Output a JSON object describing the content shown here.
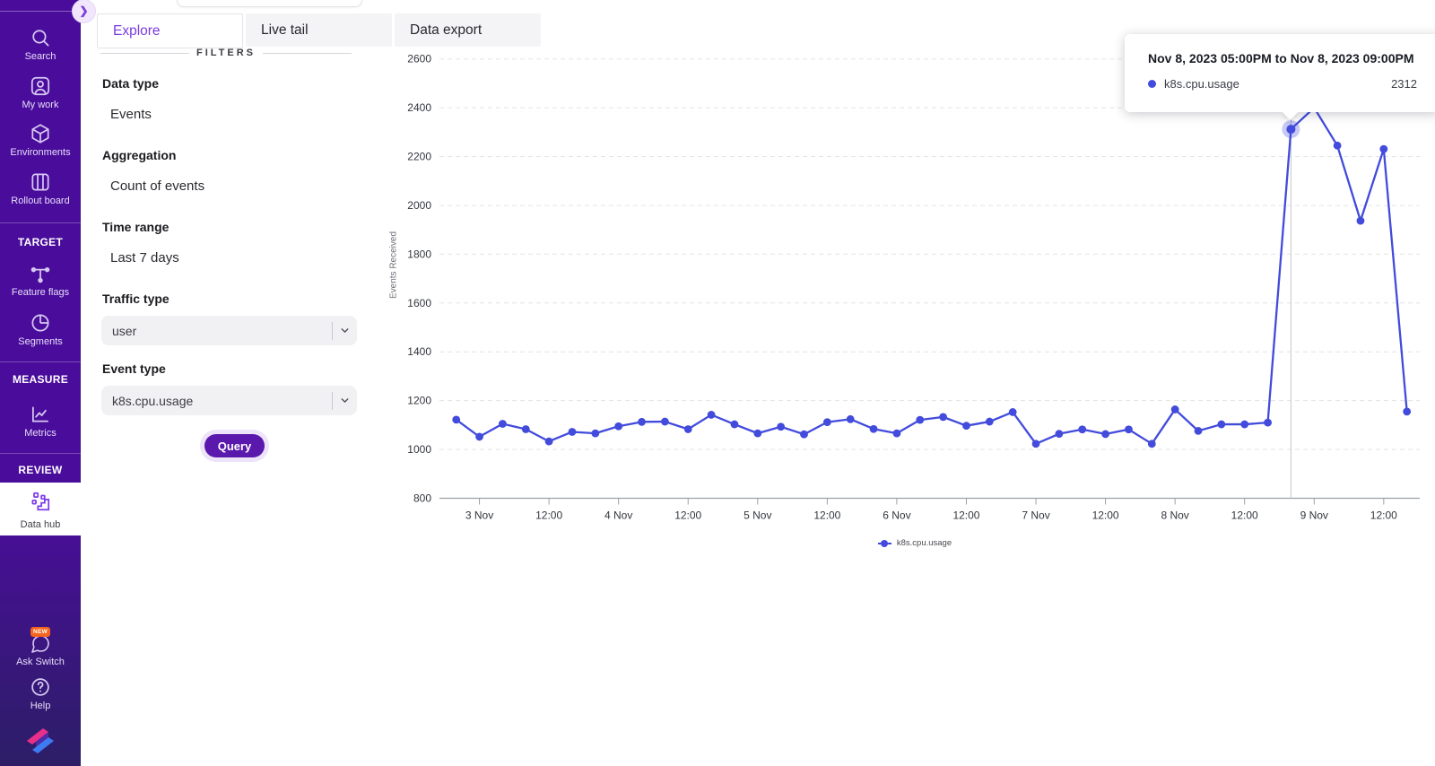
{
  "sidebar": {
    "items": [
      {
        "label": "Search"
      },
      {
        "label": "My work"
      },
      {
        "label": "Environments"
      },
      {
        "label": "Rollout board"
      }
    ],
    "sections": [
      {
        "header": "TARGET",
        "items": [
          {
            "label": "Feature flags"
          },
          {
            "label": "Segments"
          }
        ]
      },
      {
        "header": "MEASURE",
        "items": [
          {
            "label": "Metrics"
          }
        ]
      },
      {
        "header": "REVIEW",
        "items": [
          {
            "label": "Data hub",
            "selected": true
          }
        ]
      }
    ],
    "bottom_items": [
      {
        "label": "Ask Switch",
        "badge": "NEW"
      },
      {
        "label": "Help"
      }
    ]
  },
  "tabs": [
    {
      "label": "Explore",
      "active": true
    },
    {
      "label": "Live tail"
    },
    {
      "label": "Data export"
    }
  ],
  "filters": {
    "header": "FILTERS",
    "fields": [
      {
        "label": "Data type",
        "value": "Events"
      },
      {
        "label": "Aggregation",
        "value": "Count of events"
      },
      {
        "label": "Time range",
        "value": "Last 7 days"
      },
      {
        "label": "Traffic type",
        "value": "user"
      },
      {
        "label": "Event type",
        "value": "k8s.cpu.usage"
      }
    ],
    "query_label": "Query"
  },
  "tooltip": {
    "title": "Nov 8, 2023 05:00PM to Nov 8, 2023 09:00PM",
    "series": "k8s.cpu.usage",
    "value": "2312"
  },
  "chart_data": {
    "type": "line",
    "ylabel": "Events Received",
    "ylim": [
      800,
      2600
    ],
    "y_ticks": [
      800,
      1000,
      1200,
      1400,
      1600,
      1800,
      2000,
      2200,
      2400,
      2600
    ],
    "x_tick_labels": [
      "3 Nov",
      "12:00",
      "4 Nov",
      "12:00",
      "5 Nov",
      "12:00",
      "6 Nov",
      "12:00",
      "7 Nov",
      "12:00",
      "8 Nov",
      "12:00",
      "9 Nov",
      "12:00"
    ],
    "x_tick_indices": [
      1,
      4,
      7,
      10,
      13,
      16,
      19,
      22,
      25,
      28,
      31,
      34,
      37,
      40
    ],
    "series": [
      {
        "name": "k8s.cpu.usage",
        "color": "#424BDB",
        "values": [
          1122,
          1052,
          1105,
          1083,
          1033,
          1072,
          1066,
          1095,
          1113,
          1114,
          1083,
          1142,
          1103,
          1066,
          1093,
          1062,
          1112,
          1124,
          1084,
          1066,
          1121,
          1133,
          1097,
          1114,
          1153,
          1023,
          1064,
          1082,
          1063,
          1082,
          1023,
          1164,
          1076,
          1103,
          1103,
          1110,
          2312,
          2400,
          2245,
          1937,
          2231,
          1155
        ]
      }
    ],
    "selected_point": {
      "index": 36,
      "value": 2312
    },
    "legend": [
      "k8s.cpu.usage"
    ]
  }
}
